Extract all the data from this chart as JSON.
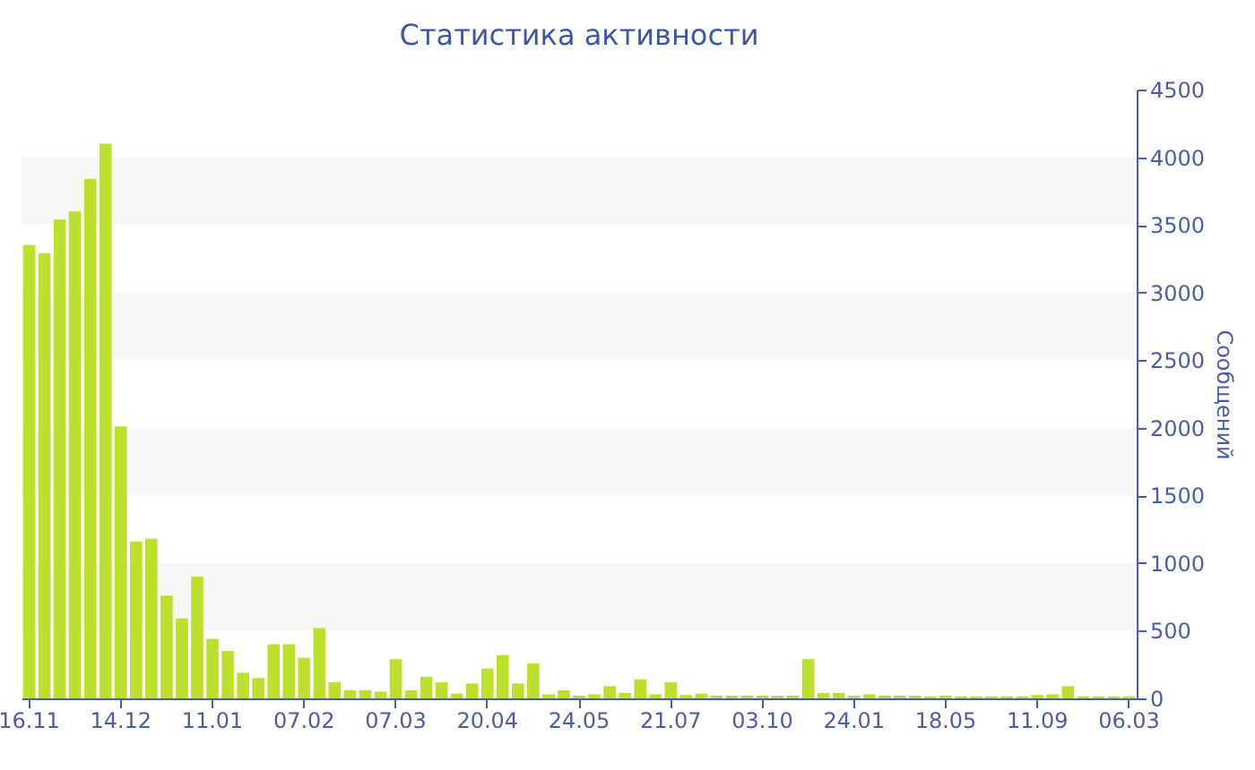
{
  "chart_data": {
    "type": "bar",
    "title": "Статистика активности",
    "ylabel": "Сообщений",
    "color": "#bce02e",
    "categories": [
      "16.11",
      null,
      null,
      null,
      null,
      null,
      "14.12",
      null,
      null,
      null,
      null,
      null,
      "11.01",
      null,
      null,
      null,
      null,
      null,
      "07.02",
      null,
      null,
      null,
      null,
      null,
      "07.03",
      null,
      null,
      null,
      null,
      null,
      "20.04",
      null,
      null,
      null,
      null,
      null,
      "24.05",
      null,
      null,
      null,
      null,
      null,
      "21.07",
      null,
      null,
      null,
      null,
      null,
      "03.10",
      null,
      null,
      null,
      null,
      null,
      "24.01",
      null,
      null,
      null,
      null,
      null,
      "18.05",
      null,
      null,
      null,
      null,
      null,
      "11.09",
      null,
      null,
      null,
      null,
      null,
      "06.03"
    ],
    "values": [
      3350,
      3290,
      3540,
      3600,
      3840,
      4100,
      2010,
      1160,
      1180,
      760,
      590,
      900,
      440,
      350,
      190,
      150,
      400,
      400,
      300,
      520,
      120,
      60,
      60,
      50,
      290,
      60,
      160,
      120,
      35,
      110,
      220,
      320,
      110,
      260,
      30,
      60,
      20,
      30,
      90,
      40,
      140,
      30,
      120,
      25,
      35,
      20,
      20,
      20,
      20,
      20,
      20,
      290,
      40,
      40,
      20,
      30,
      20,
      20,
      20,
      15,
      20,
      15,
      15,
      15,
      15,
      15,
      25,
      30,
      90,
      15,
      15,
      15,
      15
    ],
    "ylim": [
      0,
      4500
    ],
    "yticks": [
      0,
      500,
      1000,
      1500,
      2000,
      2500,
      3000,
      3500,
      4000,
      4500
    ],
    "bands": [
      {
        "axis": "y",
        "from": 500,
        "to": 1000,
        "color": "#f7f7f7"
      },
      {
        "axis": "y",
        "from": 1500,
        "to": 2000,
        "color": "#f7f7f7"
      },
      {
        "axis": "y",
        "from": 2500,
        "to": 3000,
        "color": "#f7f7f7"
      },
      {
        "axis": "y",
        "from": 3500,
        "to": 4000,
        "color": "#f7f7f7"
      }
    ]
  }
}
